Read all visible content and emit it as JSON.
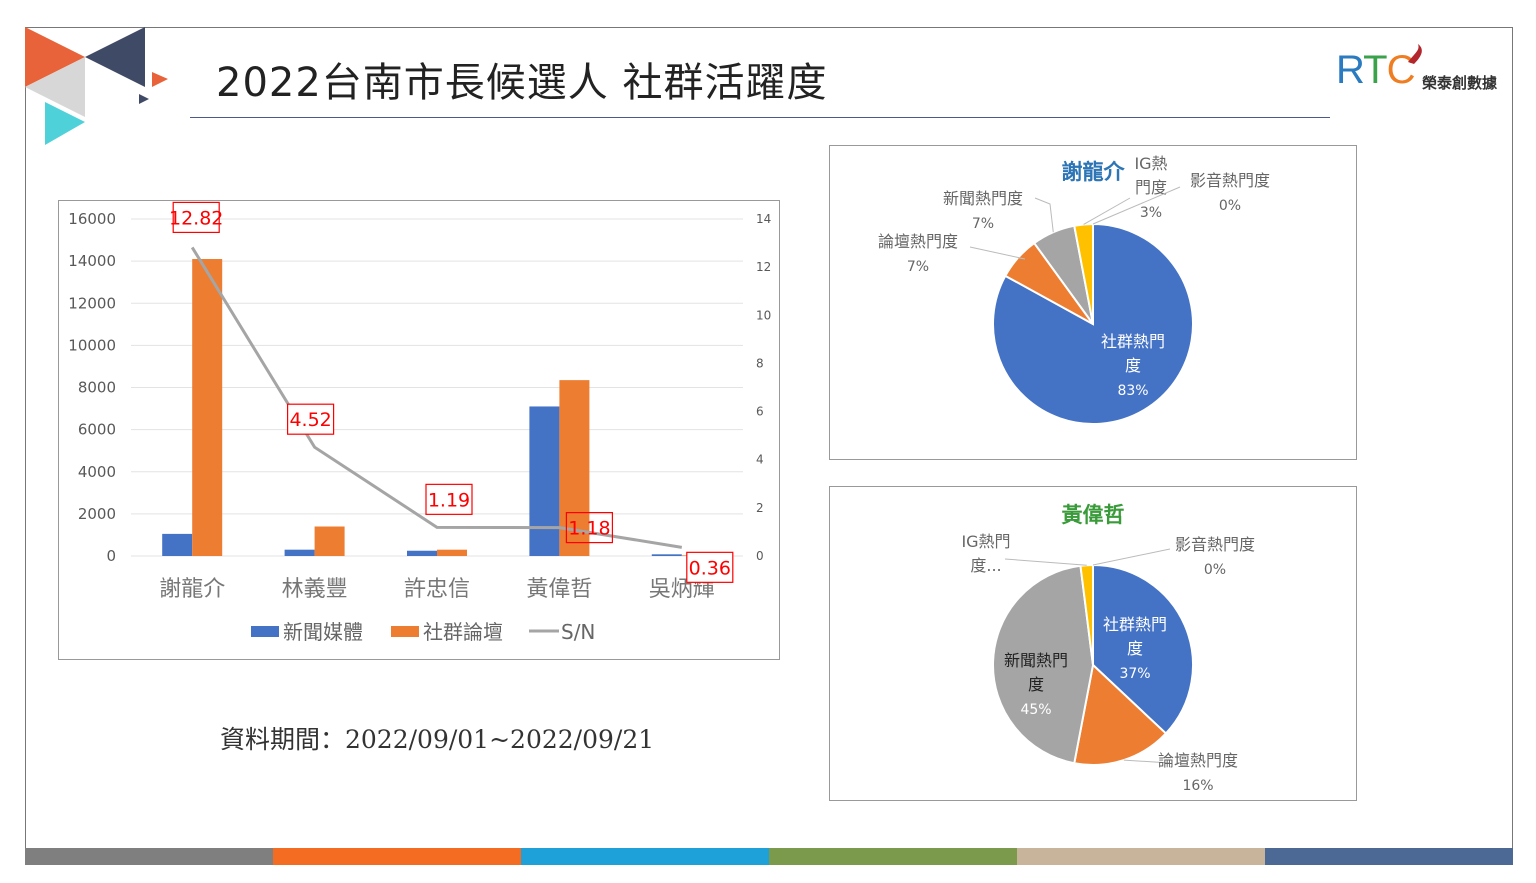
{
  "title": "2022台南市長候選人 社群活躍度",
  "logo": {
    "text": "RTC",
    "subtitle": "榮泰創數據"
  },
  "period": "資料期間：2022/09/01~2022/09/21",
  "colors": {
    "news": "#4472c4",
    "social": "#ed7d31",
    "sn": "#a5a5a5",
    "ig": "#ffc000",
    "label_box": "#ff0000"
  },
  "stripe_colors": [
    "#7f7f7f",
    "#f36c21",
    "#1ea0d9",
    "#7c9a4c",
    "#c8b49a",
    "#4c6996"
  ],
  "chart_data": [
    {
      "type": "bar",
      "categories": [
        "謝龍介",
        "林義豐",
        "許忠信",
        "黃偉哲",
        "吳炳輝"
      ],
      "series": [
        {
          "name": "新聞媒體",
          "values": [
            1050,
            300,
            250,
            7100,
            80
          ]
        },
        {
          "name": "社群論壇",
          "values": [
            14100,
            1400,
            300,
            8350,
            30
          ]
        },
        {
          "name": "S/N",
          "type": "line",
          "axis": "right",
          "values": [
            12.82,
            4.52,
            1.19,
            1.18,
            0.36
          ],
          "labels": [
            "12.82",
            "4.52",
            "1.19",
            "1.18",
            "0.36"
          ]
        }
      ],
      "ylim": [
        0,
        16000
      ],
      "yticks": [
        "0",
        "2000",
        "4000",
        "6000",
        "8000",
        "10000",
        "12000",
        "14000",
        "16000"
      ],
      "y2lim": [
        0,
        14
      ],
      "y2ticks": [
        "0",
        "2",
        "4",
        "6",
        "8",
        "10",
        "12",
        "14"
      ],
      "legend": [
        "新聞媒體",
        "社群論壇",
        "S/N"
      ],
      "legend_position": "bottom",
      "grid": true
    },
    {
      "type": "pie",
      "title": "謝龍介",
      "slices": [
        {
          "name": "社群熱門度",
          "label": [
            "社群熱門",
            "度"
          ],
          "pct": "83%",
          "value": 83,
          "color": "#4472c4"
        },
        {
          "name": "論壇熱門度",
          "label": [
            "論壇熱門度"
          ],
          "pct": "7%",
          "value": 7,
          "color": "#ed7d31"
        },
        {
          "name": "新聞熱門度",
          "label": [
            "新聞熱門度"
          ],
          "pct": "7%",
          "value": 7,
          "color": "#a5a5a5"
        },
        {
          "name": "IG熱門度",
          "label": [
            "IG熱",
            "門度"
          ],
          "pct": "3%",
          "value": 3,
          "color": "#ffc000"
        },
        {
          "name": "影音熱門度",
          "label": [
            "影音熱門度"
          ],
          "pct": "0%",
          "value": 0,
          "color": "#5b9bd5"
        }
      ]
    },
    {
      "type": "pie",
      "title": "黃偉哲",
      "slices": [
        {
          "name": "社群熱門度",
          "label": [
            "社群熱門",
            "度"
          ],
          "pct": "37%",
          "value": 37,
          "color": "#4472c4"
        },
        {
          "name": "論壇熱門度",
          "label": [
            "論壇熱門度"
          ],
          "pct": "16%",
          "value": 16,
          "color": "#ed7d31"
        },
        {
          "name": "新聞熱門度",
          "label": [
            "新聞熱門",
            "度"
          ],
          "pct": "45%",
          "value": 45,
          "color": "#a5a5a5"
        },
        {
          "name": "IG熱門度",
          "label": [
            "IG熱門",
            "度..."
          ],
          "pct": "",
          "value": 2,
          "color": "#ffc000"
        },
        {
          "name": "影音熱門度",
          "label": [
            "影音熱門度"
          ],
          "pct": "0%",
          "value": 0,
          "color": "#5b9bd5"
        }
      ]
    }
  ]
}
